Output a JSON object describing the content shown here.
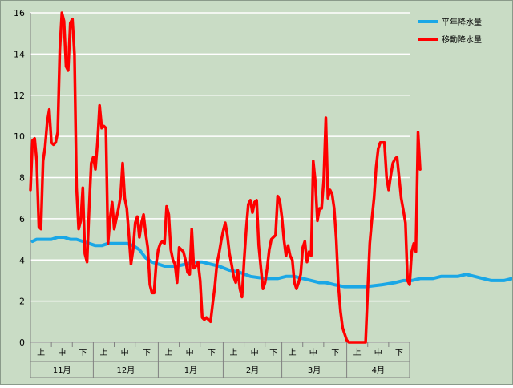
{
  "chart_data": {
    "type": "line",
    "title": "",
    "xlabel": "",
    "ylabel": "",
    "ylim": [
      0,
      16
    ],
    "yticks": [
      0,
      2,
      4,
      6,
      8,
      10,
      12,
      14,
      16
    ],
    "grid": "horizontal",
    "legend_position": "top-right",
    "months": [
      "11月",
      "12月",
      "1月",
      "2月",
      "3月",
      "4月"
    ],
    "subdivisions": [
      "上",
      "中",
      "下"
    ],
    "days": [
      30,
      31,
      31,
      28,
      31,
      30
    ],
    "series": [
      {
        "name": "平年降水量",
        "color": "#1aa7e6",
        "values": [
          [
            1,
            4.9
          ],
          [
            3,
            5.0
          ],
          [
            10,
            5.0
          ],
          [
            13,
            5.1
          ],
          [
            16,
            5.1
          ],
          [
            19,
            5.0
          ],
          [
            22,
            5.0
          ],
          [
            25,
            4.9
          ],
          [
            28,
            4.8
          ],
          [
            31,
            4.7
          ],
          [
            34,
            4.7
          ],
          [
            37,
            4.8
          ],
          [
            46,
            4.8
          ],
          [
            49,
            4.7
          ],
          [
            52,
            4.5
          ],
          [
            55,
            4.1
          ],
          [
            58,
            3.9
          ],
          [
            61,
            3.8
          ],
          [
            64,
            3.7
          ],
          [
            70,
            3.7
          ],
          [
            74,
            3.8
          ],
          [
            78,
            3.9
          ],
          [
            82,
            3.9
          ],
          [
            86,
            3.8
          ],
          [
            90,
            3.7
          ],
          [
            95,
            3.5
          ],
          [
            100,
            3.4
          ],
          [
            105,
            3.2
          ],
          [
            112,
            3.1
          ],
          [
            118,
            3.1
          ],
          [
            122,
            3.2
          ],
          [
            126,
            3.2
          ],
          [
            130,
            3.1
          ],
          [
            134,
            3.0
          ],
          [
            138,
            2.9
          ],
          [
            141,
            2.9
          ],
          [
            145,
            2.8
          ],
          [
            150,
            2.7
          ],
          [
            160,
            2.7
          ],
          [
            168,
            2.8
          ],
          [
            174,
            2.9
          ],
          [
            178,
            3.0
          ],
          [
            182,
            3.0
          ],
          [
            186,
            3.1
          ],
          [
            192,
            3.1
          ],
          [
            196,
            3.2
          ],
          [
            204,
            3.2
          ],
          [
            208,
            3.3
          ],
          [
            212,
            3.2
          ],
          [
            216,
            3.1
          ],
          [
            220,
            3.0
          ],
          [
            226,
            3.0
          ],
          [
            230,
            3.1
          ],
          [
            236,
            3.1
          ],
          [
            240,
            3.2
          ],
          [
            244,
            3.2
          ],
          [
            248,
            3.3
          ],
          [
            252,
            3.5
          ],
          [
            256,
            3.7
          ],
          [
            260,
            3.9
          ],
          [
            264,
            4.0
          ],
          [
            268,
            4.1
          ],
          [
            272,
            4.0
          ],
          [
            276,
            3.9
          ],
          [
            280,
            3.8
          ],
          [
            283,
            3.9
          ],
          [
            285,
            3.9
          ]
        ]
      },
      {
        "name": "移動降水量",
        "color": "#ff0000",
        "values": [
          [
            0,
            7.4
          ],
          [
            1,
            9.8
          ],
          [
            2,
            9.9
          ],
          [
            3,
            8.8
          ],
          [
            4,
            5.6
          ],
          [
            5,
            5.5
          ],
          [
            6,
            8.8
          ],
          [
            7,
            9.5
          ],
          [
            8,
            10.7
          ],
          [
            9,
            11.3
          ],
          [
            10,
            9.7
          ],
          [
            11,
            9.6
          ],
          [
            12,
            9.7
          ],
          [
            13,
            10.2
          ],
          [
            14,
            14.2
          ],
          [
            15,
            16.0
          ],
          [
            16,
            15.6
          ],
          [
            17,
            13.4
          ],
          [
            18,
            13.2
          ],
          [
            19,
            15.5
          ],
          [
            20,
            15.7
          ],
          [
            21,
            14.0
          ],
          [
            22,
            7.5
          ],
          [
            23,
            5.5
          ],
          [
            24,
            5.9
          ],
          [
            25,
            7.5
          ],
          [
            26,
            4.3
          ],
          [
            27,
            3.9
          ],
          [
            28,
            6.5
          ],
          [
            29,
            8.7
          ],
          [
            30,
            9.0
          ],
          [
            31,
            8.4
          ],
          [
            32,
            9.7
          ],
          [
            33,
            11.5
          ],
          [
            34,
            10.4
          ],
          [
            35,
            10.5
          ],
          [
            36,
            10.4
          ],
          [
            37,
            4.8
          ],
          [
            38,
            6.0
          ],
          [
            39,
            6.8
          ],
          [
            40,
            5.5
          ],
          [
            41,
            6.0
          ],
          [
            42,
            6.5
          ],
          [
            43,
            7.1
          ],
          [
            44,
            8.7
          ],
          [
            45,
            7.0
          ],
          [
            46,
            6.5
          ],
          [
            47,
            5.2
          ],
          [
            48,
            3.8
          ],
          [
            49,
            4.5
          ],
          [
            50,
            5.8
          ],
          [
            51,
            6.1
          ],
          [
            52,
            5.1
          ],
          [
            53,
            5.8
          ],
          [
            54,
            6.2
          ],
          [
            55,
            5.3
          ],
          [
            56,
            4.6
          ],
          [
            57,
            2.8
          ],
          [
            58,
            2.4
          ],
          [
            59,
            2.4
          ],
          [
            60,
            3.8
          ],
          [
            61,
            4.5
          ],
          [
            62,
            4.8
          ],
          [
            63,
            4.9
          ],
          [
            64,
            4.8
          ],
          [
            65,
            6.6
          ],
          [
            66,
            6.2
          ],
          [
            67,
            4.5
          ],
          [
            68,
            4.0
          ],
          [
            69,
            3.8
          ],
          [
            70,
            2.9
          ],
          [
            71,
            4.6
          ],
          [
            72,
            4.5
          ],
          [
            73,
            4.4
          ],
          [
            74,
            4.0
          ],
          [
            75,
            3.4
          ],
          [
            76,
            3.3
          ],
          [
            77,
            5.5
          ],
          [
            78,
            3.6
          ],
          [
            79,
            3.7
          ],
          [
            80,
            3.9
          ],
          [
            81,
            3.0
          ],
          [
            82,
            1.2
          ],
          [
            83,
            1.1
          ],
          [
            84,
            1.2
          ],
          [
            85,
            1.1
          ],
          [
            86,
            1.0
          ],
          [
            87,
            1.9
          ],
          [
            88,
            2.7
          ],
          [
            89,
            3.8
          ],
          [
            90,
            4.3
          ],
          [
            91,
            4.9
          ],
          [
            92,
            5.4
          ],
          [
            93,
            5.8
          ],
          [
            94,
            5.2
          ],
          [
            95,
            4.3
          ],
          [
            96,
            3.8
          ],
          [
            97,
            3.2
          ],
          [
            98,
            2.9
          ],
          [
            99,
            3.5
          ],
          [
            100,
            2.6
          ],
          [
            101,
            2.2
          ],
          [
            102,
            4.0
          ],
          [
            103,
            5.5
          ],
          [
            104,
            6.7
          ],
          [
            105,
            6.9
          ],
          [
            106,
            6.3
          ],
          [
            107,
            6.8
          ],
          [
            108,
            6.9
          ],
          [
            109,
            4.7
          ],
          [
            110,
            3.6
          ],
          [
            111,
            2.6
          ],
          [
            112,
            2.9
          ],
          [
            113,
            3.6
          ],
          [
            114,
            4.5
          ],
          [
            115,
            5.0
          ],
          [
            116,
            5.1
          ],
          [
            117,
            5.2
          ],
          [
            118,
            7.1
          ],
          [
            119,
            6.9
          ],
          [
            120,
            6.1
          ],
          [
            121,
            5.0
          ],
          [
            122,
            4.2
          ],
          [
            123,
            4.7
          ],
          [
            124,
            4.2
          ],
          [
            125,
            4.0
          ],
          [
            126,
            2.9
          ],
          [
            127,
            2.6
          ],
          [
            128,
            2.9
          ],
          [
            129,
            3.3
          ],
          [
            130,
            4.6
          ],
          [
            131,
            4.9
          ],
          [
            132,
            3.9
          ],
          [
            133,
            4.4
          ],
          [
            134,
            4.2
          ],
          [
            135,
            8.8
          ],
          [
            136,
            7.8
          ],
          [
            137,
            5.9
          ],
          [
            138,
            6.5
          ],
          [
            139,
            6.5
          ],
          [
            140,
            7.9
          ],
          [
            141,
            10.9
          ],
          [
            142,
            7.0
          ],
          [
            143,
            7.4
          ],
          [
            144,
            7.2
          ],
          [
            145,
            6.5
          ],
          [
            146,
            5.0
          ],
          [
            147,
            2.8
          ],
          [
            148,
            1.5
          ],
          [
            149,
            0.7
          ],
          [
            150,
            0.4
          ],
          [
            151,
            0.1
          ],
          [
            152,
            0.0
          ],
          [
            160,
            0.0
          ],
          [
            161,
            2.5
          ],
          [
            162,
            4.8
          ],
          [
            163,
            6.0
          ],
          [
            164,
            7.0
          ],
          [
            165,
            8.5
          ],
          [
            166,
            9.4
          ],
          [
            167,
            9.7
          ],
          [
            168,
            9.7
          ],
          [
            169,
            9.7
          ],
          [
            170,
            8.0
          ],
          [
            171,
            7.4
          ],
          [
            172,
            8.1
          ],
          [
            173,
            8.7
          ],
          [
            174,
            8.9
          ],
          [
            175,
            9.0
          ],
          [
            176,
            8.0
          ],
          [
            177,
            7.0
          ],
          [
            178,
            6.4
          ],
          [
            179,
            5.8
          ],
          [
            180,
            3.0
          ],
          [
            181,
            2.8
          ],
          [
            182,
            4.4
          ],
          [
            183,
            4.8
          ],
          [
            184,
            4.4
          ],
          [
            185,
            10.2
          ],
          [
            186,
            8.4
          ]
        ]
      }
    ]
  }
}
